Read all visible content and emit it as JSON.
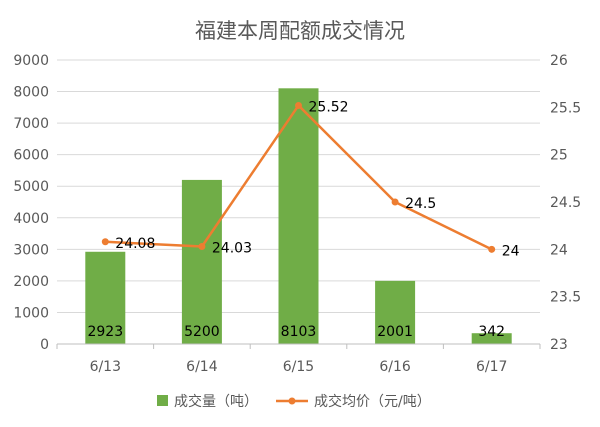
{
  "chart_data": {
    "type": "bar+line",
    "title": "福建本周配额成交情况",
    "categories": [
      "6/13",
      "6/14",
      "6/15",
      "6/16",
      "6/17"
    ],
    "series": [
      {
        "name": "成交量（吨）",
        "type": "bar",
        "axis": "left",
        "color": "#70ad47",
        "values": [
          2923,
          5200,
          8103,
          2001,
          342
        ],
        "labels": [
          "2923",
          "5200",
          "8103",
          "2001",
          "342"
        ]
      },
      {
        "name": "成交均价（元/吨）",
        "type": "line",
        "axis": "right",
        "color": "#ed7d31",
        "values": [
          24.08,
          24.03,
          25.52,
          24.5,
          24
        ],
        "labels": [
          "24.08",
          "24.03",
          "25.52",
          "24.5",
          "24"
        ]
      }
    ],
    "y_left": {
      "range": [
        0,
        9000
      ],
      "ticks": [
        "0",
        "1000",
        "2000",
        "3000",
        "4000",
        "5000",
        "6000",
        "7000",
        "8000",
        "9000"
      ]
    },
    "y_right": {
      "range": [
        23,
        26
      ],
      "ticks": [
        "23",
        "23.5",
        "24",
        "24.5",
        "25",
        "25.5",
        "26"
      ]
    },
    "grid": true,
    "legend_position": "bottom"
  }
}
